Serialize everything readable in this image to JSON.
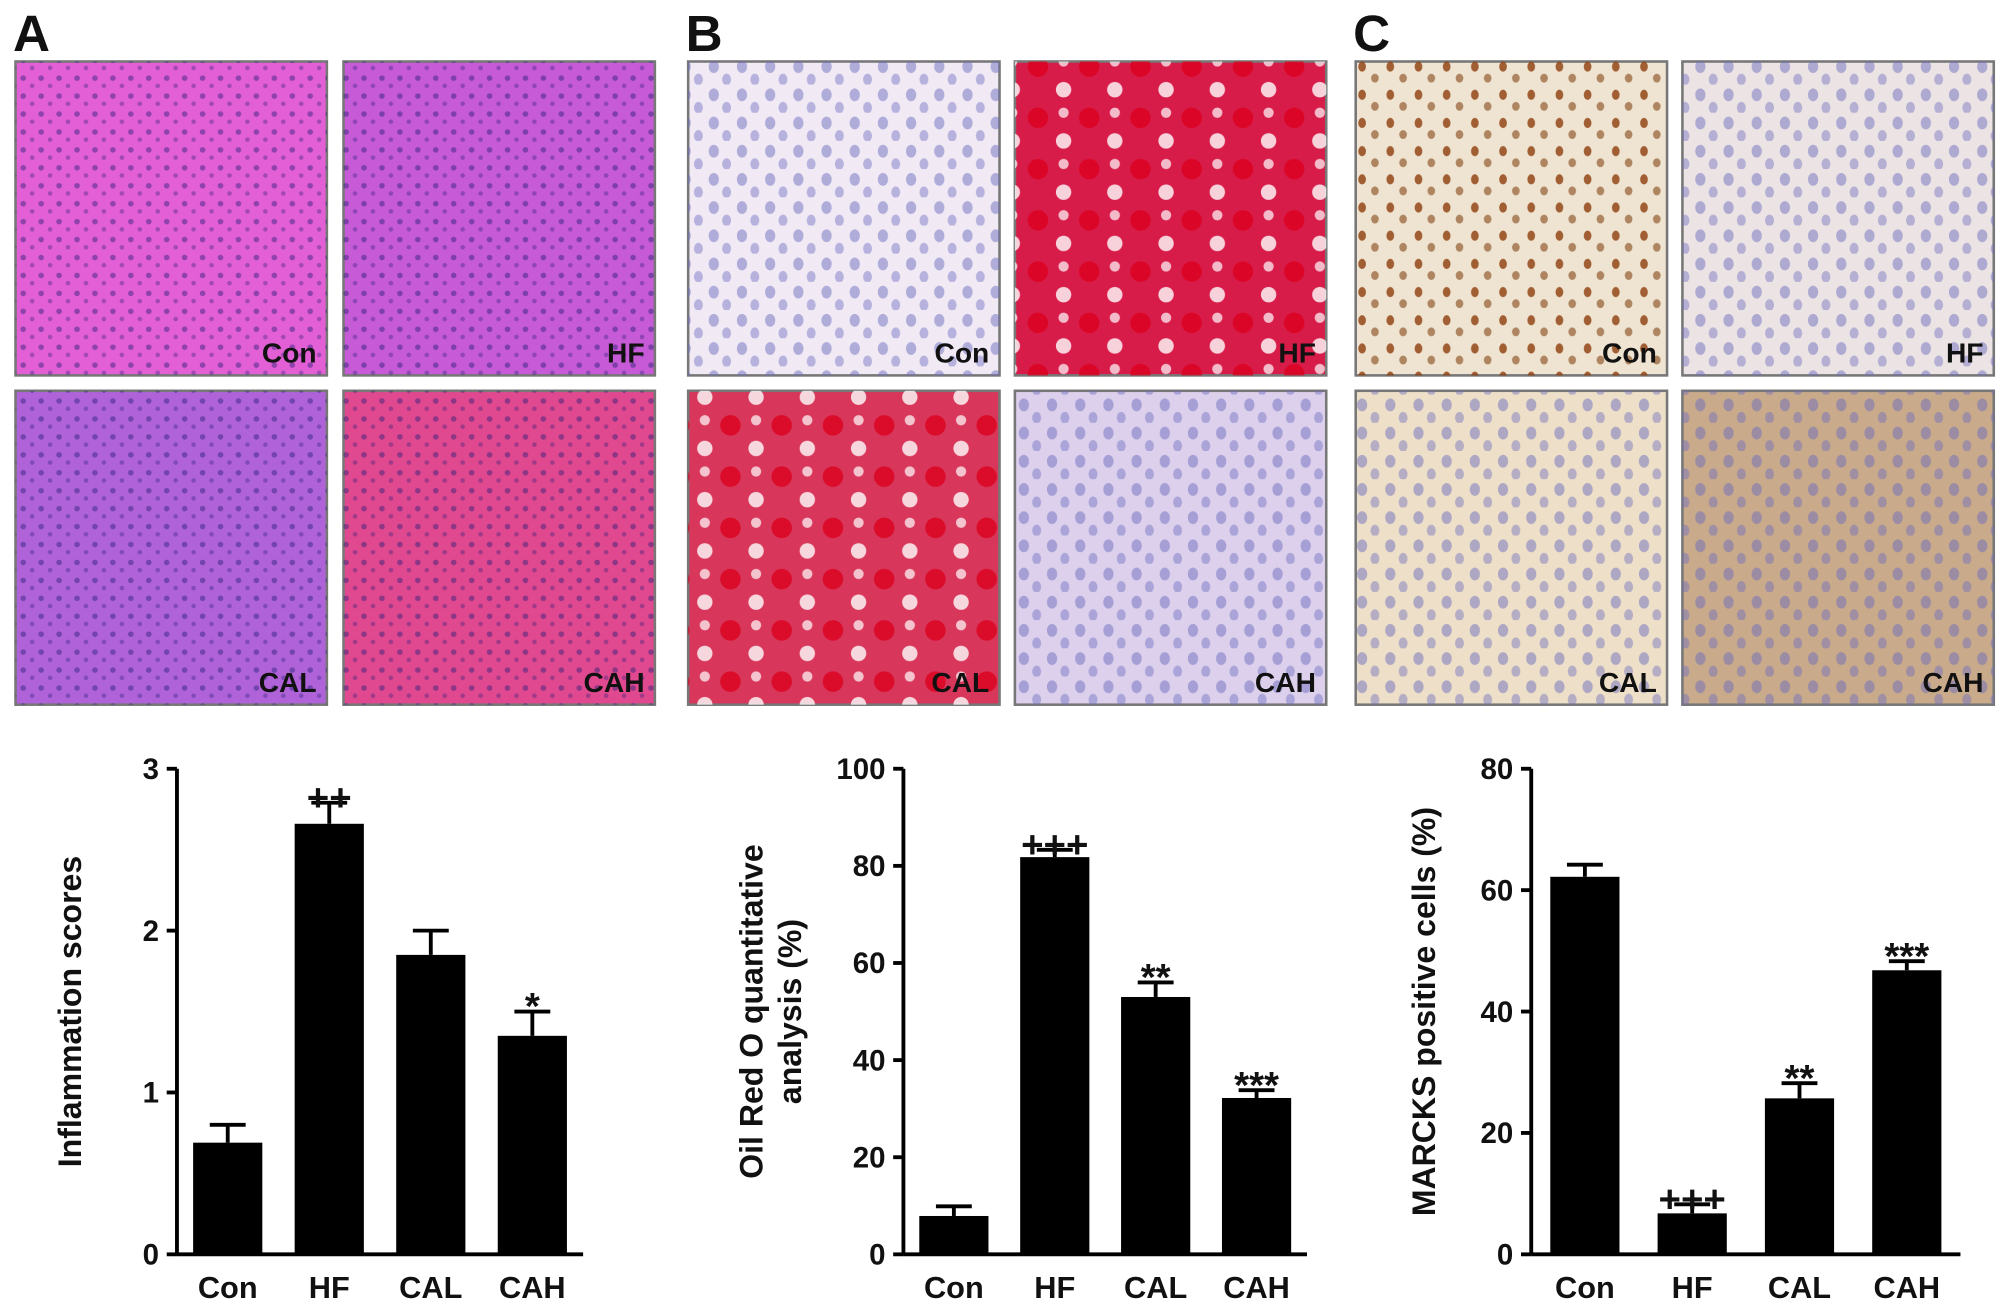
{
  "panels": [
    {
      "label": "A",
      "image_labels": [
        "Con",
        "HF",
        "CAL",
        "CAH"
      ]
    },
    {
      "label": "B",
      "image_labels": [
        "Con",
        "HF",
        "CAL",
        "CAH"
      ]
    },
    {
      "label": "C",
      "image_labels": [
        "Con",
        "HF",
        "CAL",
        "CAH"
      ]
    }
  ],
  "chart_data": [
    {
      "type": "bar",
      "ylabel": [
        "Inflammation scores"
      ],
      "categories": [
        "Con",
        "HF",
        "CAL",
        "CAH"
      ],
      "values": [
        0.69,
        2.66,
        1.85,
        1.35
      ],
      "errors": [
        0.11,
        0.13,
        0.15,
        0.15
      ],
      "annotations": [
        null,
        "++",
        null,
        "*"
      ],
      "color": "#000000",
      "ylim": [
        0,
        3
      ],
      "yticks": [
        0,
        1,
        2,
        3
      ]
    },
    {
      "type": "bar",
      "ylabel": [
        "Oil Red O quantitative",
        "analysis (%)"
      ],
      "categories": [
        "Con",
        "HF",
        "CAL",
        "CAH"
      ],
      "values": [
        7.9,
        81.8,
        53,
        32.2
      ],
      "errors": [
        2,
        1.5,
        3,
        1.6
      ],
      "annotations": [
        null,
        "+++",
        "**",
        "***"
      ],
      "color": "#000000",
      "ylim": [
        0,
        100
      ],
      "yticks": [
        0,
        20,
        40,
        60,
        80,
        100
      ]
    },
    {
      "type": "bar",
      "ylabel": [
        "MARCKS  positive cells (%)"
      ],
      "categories": [
        "Con",
        "HF",
        "CAL",
        "CAH"
      ],
      "values": [
        62.2,
        6.75,
        25.7,
        46.8
      ],
      "errors": [
        2,
        1.5,
        2.5,
        1.5
      ],
      "annotations": [
        null,
        "+++",
        "**",
        "***"
      ],
      "color": "#000000",
      "ylim": [
        0,
        80
      ],
      "yticks": [
        0,
        20,
        40,
        60,
        80
      ]
    }
  ]
}
